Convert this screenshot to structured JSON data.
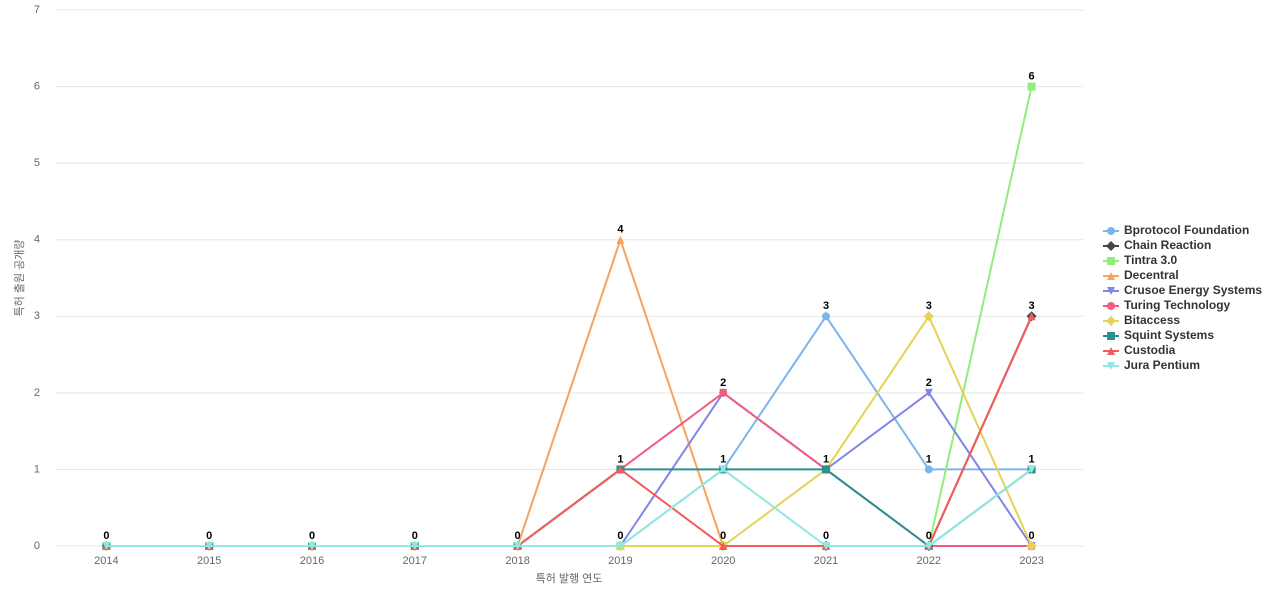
{
  "chart_data": {
    "type": "line",
    "x_label": "특허 발행 연도",
    "y_label": "특허 출원 공개량",
    "categories": [
      "2014",
      "2015",
      "2016",
      "2017",
      "2018",
      "2019",
      "2020",
      "2021",
      "2022",
      "2023"
    ],
    "ylim": [
      0,
      7
    ],
    "yticks": [
      0,
      1,
      2,
      3,
      4,
      5,
      6,
      7
    ],
    "grid": true,
    "series": [
      {
        "name": "Bprotocol Foundation",
        "color": "#7cb5ec",
        "marker": "circle",
        "values": [
          0,
          0,
          0,
          0,
          0,
          0,
          1,
          3,
          1,
          1
        ]
      },
      {
        "name": "Chain Reaction",
        "color": "#434348",
        "marker": "diamond",
        "values": [
          0,
          0,
          0,
          0,
          0,
          0,
          0,
          0,
          0,
          3
        ]
      },
      {
        "name": "Tintra 3.0",
        "color": "#90ed7d",
        "marker": "square",
        "values": [
          0,
          0,
          0,
          0,
          0,
          0,
          0,
          0,
          0,
          6
        ]
      },
      {
        "name": "Decentral",
        "color": "#f7a35c",
        "marker": "triangle",
        "values": [
          0,
          0,
          0,
          0,
          0,
          4,
          0,
          0,
          0,
          0
        ]
      },
      {
        "name": "Crusoe Energy Systems",
        "color": "#8085e9",
        "marker": "triangle-down",
        "values": [
          0,
          0,
          0,
          0,
          0,
          0,
          2,
          1,
          2,
          0
        ]
      },
      {
        "name": "Turing Technology",
        "color": "#f15c80",
        "marker": "circle",
        "values": [
          0,
          0,
          0,
          0,
          0,
          1,
          2,
          1,
          0,
          0
        ]
      },
      {
        "name": "Bitaccess",
        "color": "#e4d354",
        "marker": "diamond",
        "values": [
          0,
          0,
          0,
          0,
          0,
          0,
          0,
          1,
          3,
          0
        ]
      },
      {
        "name": "Squint Systems",
        "color": "#2b908f",
        "marker": "square",
        "values": [
          0,
          0,
          0,
          0,
          0,
          1,
          1,
          1,
          0,
          1
        ]
      },
      {
        "name": "Custodia",
        "color": "#f45b5b",
        "marker": "triangle",
        "values": [
          0,
          0,
          0,
          0,
          0,
          1,
          0,
          0,
          0,
          3
        ]
      },
      {
        "name": "Jura Pentium",
        "color": "#91e8e1",
        "marker": "triangle-down",
        "values": [
          0,
          0,
          0,
          0,
          0,
          0,
          1,
          0,
          0,
          1
        ]
      }
    ]
  }
}
